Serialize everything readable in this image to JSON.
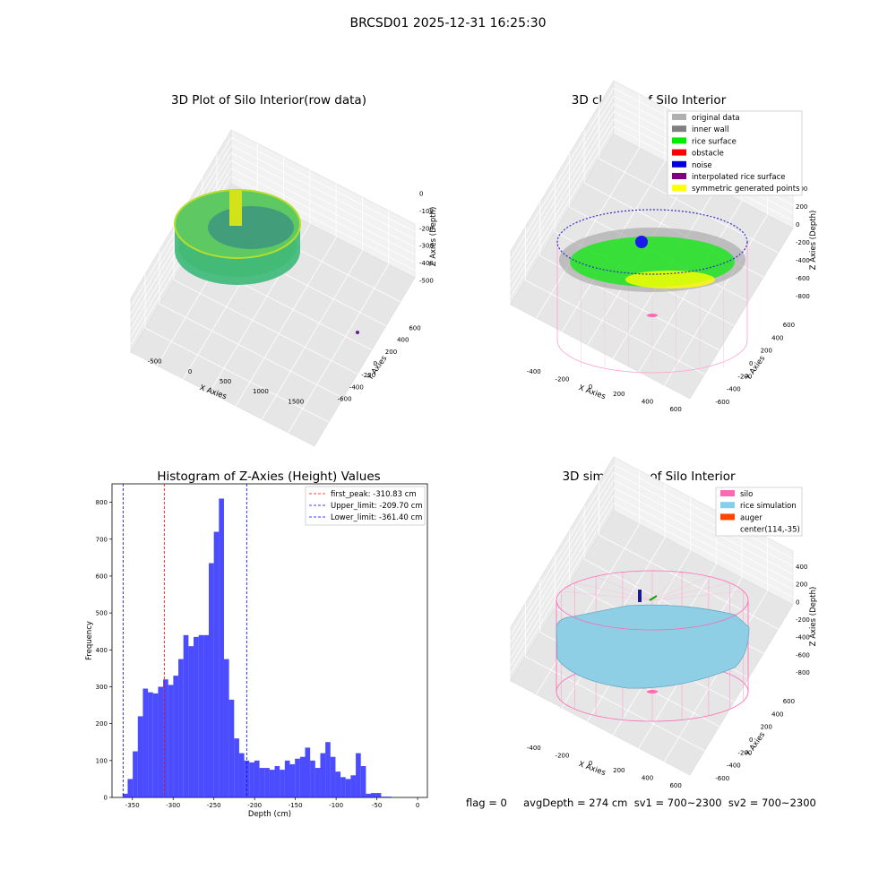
{
  "suptitle": "BRCSD01 2025-12-31 16:25:30",
  "panels": {
    "raw": {
      "title": "3D Plot of Silo Interior(row data)",
      "xlabel": "X Axies",
      "ylabel": "Y Axies",
      "zlabel": "Z Axies (Depth)",
      "xticks": [
        "-500",
        "0",
        "500",
        "1000",
        "1500"
      ],
      "yticks": [
        "-600",
        "-400",
        "-200",
        "0",
        "200",
        "400",
        "600"
      ],
      "zticks": [
        "0",
        "-100",
        "-200",
        "-300",
        "-400",
        "-500"
      ]
    },
    "classify": {
      "title": "3D classify of Silo Interior",
      "xlabel": "X Axies",
      "ylabel": "Y Axies",
      "zlabel": "Z Axies (Depth)",
      "xticks": [
        "-400",
        "-200",
        "0",
        "200",
        "400",
        "600"
      ],
      "yticks": [
        "-600",
        "-400",
        "-200",
        "0",
        "200",
        "400",
        "600"
      ],
      "zticks": [
        "400",
        "200",
        "0",
        "-200",
        "-400",
        "-600",
        "-800"
      ],
      "legend": [
        {
          "label": "original data",
          "color": "#b0b0b0"
        },
        {
          "label": "inner wall",
          "color": "#808080"
        },
        {
          "label": "rice surface",
          "color": "#00ee00"
        },
        {
          "label": "obstacle",
          "color": "#ff0000"
        },
        {
          "label": "noise",
          "color": "#0000dd"
        },
        {
          "label": "interpolated rice surface",
          "color": "#800080"
        },
        {
          "label": "symmetric generated points",
          "color": "#ffff00"
        }
      ]
    },
    "simulation": {
      "title": "3D simulation of Silo Interior",
      "xlabel": "X Axies",
      "ylabel": "Y Axies",
      "zlabel": "Z Axies (Depth)",
      "xticks": [
        "-400",
        "-200",
        "0",
        "200",
        "400",
        "600"
      ],
      "yticks": [
        "-600",
        "-400",
        "-200",
        "0",
        "200",
        "400",
        "600"
      ],
      "zticks": [
        "400",
        "200",
        "0",
        "-200",
        "-400",
        "-600",
        "-800"
      ],
      "legend": [
        {
          "label": "silo",
          "color": "#ff69b4"
        },
        {
          "label": "rice simulation",
          "color": "#87ceeb"
        },
        {
          "label": "auger",
          "color": "#ff4500"
        },
        {
          "label": "center(114,-35)",
          "color": ""
        }
      ]
    }
  },
  "footer": "flag = 0     avgDepth = 274 cm  sv1 = 700~2300  sv2 = 700~2300",
  "chart_data": [
    {
      "type": "bar",
      "title": "Histogram of Z-Axies (Height) Values",
      "xlabel": "Depth (cm)",
      "ylabel": "Frequency",
      "xlim": [
        -375,
        12
      ],
      "ylim": [
        0,
        850
      ],
      "xticks": [
        -350,
        -300,
        -250,
        -200,
        -150,
        -100,
        -50,
        0
      ],
      "yticks": [
        0,
        100,
        200,
        300,
        400,
        500,
        600,
        700,
        800
      ],
      "bin_start": -362,
      "bin_width": 6.22,
      "bar_color": "#0000ff",
      "values": [
        10,
        50,
        125,
        220,
        295,
        285,
        282,
        300,
        320,
        305,
        330,
        375,
        440,
        410,
        435,
        440,
        440,
        635,
        720,
        810,
        375,
        265,
        160,
        120,
        100,
        95,
        100,
        80,
        80,
        75,
        85,
        75,
        100,
        90,
        105,
        110,
        135,
        100,
        80,
        120,
        150,
        110,
        70,
        55,
        50,
        60,
        120,
        85,
        10,
        12,
        12,
        2,
        2
      ],
      "vlines": [
        {
          "label": "first_peak: -310.83 cm",
          "x": -310.83,
          "color": "#ff0000"
        },
        {
          "label": "Upper_limit: -209.70 cm",
          "x": -209.7,
          "color": "#0000ff"
        },
        {
          "label": "Lower_limit: -361.40 cm",
          "x": -361.4,
          "color": "#0000ff"
        }
      ]
    }
  ]
}
